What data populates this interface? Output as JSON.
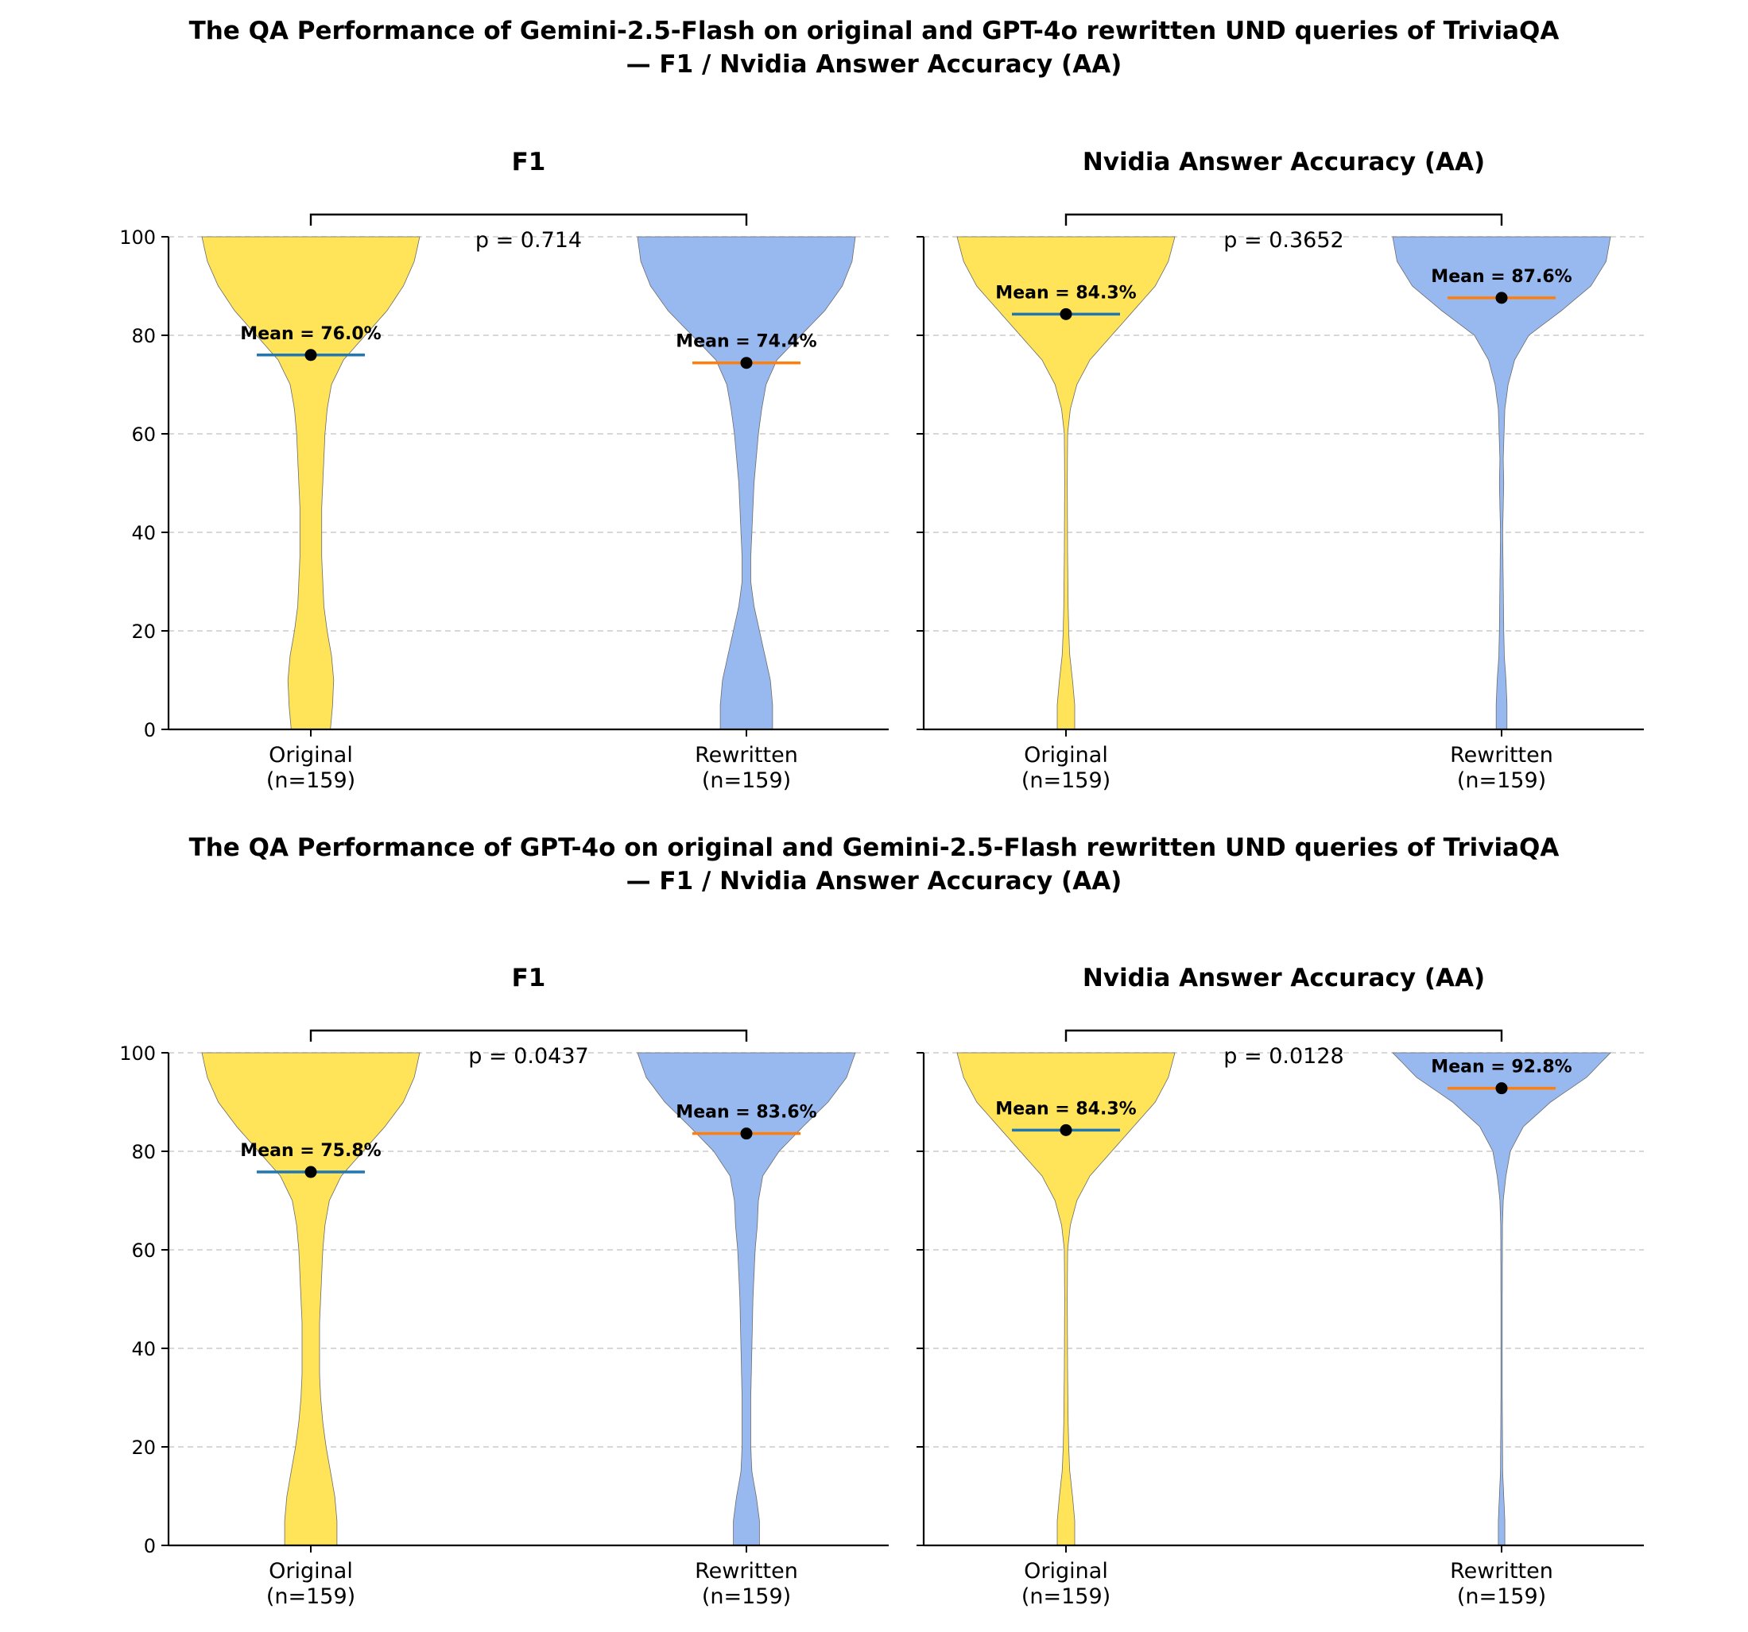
{
  "figure": {
    "sections": [
      {
        "title_line1": "The QA Performance of Gemini-2.5-Flash on original and GPT-4o rewritten UND queries of TriviaQA",
        "title_line2": "— F1 / Nvidia Answer Accuracy (AA)"
      },
      {
        "title_line1": "The QA Performance of GPT-4o on original and Gemini-2.5-Flash rewritten UND queries of TriviaQA",
        "title_line2": "— F1 / Nvidia Answer Accuracy (AA)"
      }
    ]
  },
  "colors": {
    "original_fill": "#ffe359",
    "rewritten_fill": "#98b9ef",
    "original_mean_line": "#1f77b4",
    "rewritten_mean_line": "#ff7f0e",
    "grid": "#cccccc"
  },
  "chart_data": [
    {
      "type": "violin",
      "title": "F1",
      "section": 0,
      "categories": [
        "Original\n(n=159)",
        "Rewritten\n(n=159)"
      ],
      "ylim": [
        0,
        100
      ],
      "yticks": [
        0,
        20,
        40,
        60,
        80,
        100
      ],
      "grid": true,
      "p_label": "p = 0.714",
      "series": [
        {
          "name": "Original",
          "mean": 76.0,
          "mean_label": "Mean = 76.0%",
          "density": [
            [
              0,
              0.18
            ],
            [
              5,
              0.2
            ],
            [
              10,
              0.21
            ],
            [
              15,
              0.19
            ],
            [
              20,
              0.15
            ],
            [
              25,
              0.12
            ],
            [
              30,
              0.11
            ],
            [
              35,
              0.1
            ],
            [
              40,
              0.1
            ],
            [
              45,
              0.1
            ],
            [
              50,
              0.11
            ],
            [
              55,
              0.12
            ],
            [
              60,
              0.13
            ],
            [
              65,
              0.15
            ],
            [
              70,
              0.19
            ],
            [
              75,
              0.3
            ],
            [
              80,
              0.5
            ],
            [
              85,
              0.7
            ],
            [
              90,
              0.85
            ],
            [
              95,
              0.95
            ],
            [
              100,
              1.0
            ]
          ]
        },
        {
          "name": "Rewritten",
          "mean": 74.4,
          "mean_label": "Mean = 74.4%",
          "density": [
            [
              0,
              0.24
            ],
            [
              5,
              0.24
            ],
            [
              10,
              0.22
            ],
            [
              15,
              0.17
            ],
            [
              20,
              0.12
            ],
            [
              25,
              0.07
            ],
            [
              30,
              0.04
            ],
            [
              35,
              0.04
            ],
            [
              40,
              0.05
            ],
            [
              45,
              0.06
            ],
            [
              50,
              0.07
            ],
            [
              55,
              0.09
            ],
            [
              60,
              0.11
            ],
            [
              65,
              0.14
            ],
            [
              70,
              0.18
            ],
            [
              75,
              0.28
            ],
            [
              80,
              0.5
            ],
            [
              85,
              0.72
            ],
            [
              90,
              0.88
            ],
            [
              95,
              0.97
            ],
            [
              100,
              1.0
            ]
          ]
        }
      ]
    },
    {
      "type": "violin",
      "title": "Nvidia Answer Accuracy (AA)",
      "section": 0,
      "categories": [
        "Original\n(n=159)",
        "Rewritten\n(n=159)"
      ],
      "ylim": [
        0,
        100
      ],
      "yticks": [
        0,
        20,
        40,
        60,
        80,
        100
      ],
      "grid": true,
      "p_label": "p = 0.3652",
      "series": [
        {
          "name": "Original",
          "mean": 84.3,
          "mean_label": "Mean = 84.3%",
          "density": [
            [
              0,
              0.08
            ],
            [
              5,
              0.08
            ],
            [
              10,
              0.06
            ],
            [
              15,
              0.035
            ],
            [
              20,
              0.025
            ],
            [
              25,
              0.02
            ],
            [
              35,
              0.015
            ],
            [
              50,
              0.012
            ],
            [
              60,
              0.015
            ],
            [
              65,
              0.04
            ],
            [
              70,
              0.1
            ],
            [
              75,
              0.22
            ],
            [
              80,
              0.42
            ],
            [
              85,
              0.62
            ],
            [
              90,
              0.82
            ],
            [
              95,
              0.94
            ],
            [
              100,
              1.0
            ]
          ]
        },
        {
          "name": "Rewritten",
          "mean": 87.6,
          "mean_label": "Mean = 87.6%",
          "density": [
            [
              0,
              0.05
            ],
            [
              5,
              0.05
            ],
            [
              10,
              0.04
            ],
            [
              15,
              0.025
            ],
            [
              20,
              0.02
            ],
            [
              30,
              0.015
            ],
            [
              40,
              0.01
            ],
            [
              45,
              0.015
            ],
            [
              50,
              0.02
            ],
            [
              55,
              0.015
            ],
            [
              65,
              0.03
            ],
            [
              70,
              0.06
            ],
            [
              75,
              0.12
            ],
            [
              80,
              0.25
            ],
            [
              85,
              0.55
            ],
            [
              90,
              0.82
            ],
            [
              95,
              0.96
            ],
            [
              100,
              1.0
            ]
          ]
        }
      ]
    },
    {
      "type": "violin",
      "title": "F1",
      "section": 1,
      "categories": [
        "Original\n(n=159)",
        "Rewritten\n(n=159)"
      ],
      "ylim": [
        0,
        100
      ],
      "yticks": [
        0,
        20,
        40,
        60,
        80,
        100
      ],
      "grid": true,
      "p_label": "p = 0.0437",
      "series": [
        {
          "name": "Original",
          "mean": 75.8,
          "mean_label": "Mean = 75.8%",
          "density": [
            [
              0,
              0.24
            ],
            [
              5,
              0.24
            ],
            [
              10,
              0.22
            ],
            [
              15,
              0.18
            ],
            [
              20,
              0.14
            ],
            [
              25,
              0.11
            ],
            [
              30,
              0.09
            ],
            [
              35,
              0.08
            ],
            [
              40,
              0.08
            ],
            [
              45,
              0.08
            ],
            [
              50,
              0.09
            ],
            [
              55,
              0.1
            ],
            [
              60,
              0.11
            ],
            [
              65,
              0.13
            ],
            [
              70,
              0.17
            ],
            [
              75,
              0.28
            ],
            [
              80,
              0.48
            ],
            [
              85,
              0.68
            ],
            [
              90,
              0.85
            ],
            [
              95,
              0.95
            ],
            [
              100,
              1.0
            ]
          ]
        },
        {
          "name": "Rewritten",
          "mean": 83.6,
          "mean_label": "Mean = 83.6%",
          "density": [
            [
              0,
              0.12
            ],
            [
              5,
              0.12
            ],
            [
              10,
              0.09
            ],
            [
              15,
              0.05
            ],
            [
              20,
              0.04
            ],
            [
              30,
              0.04
            ],
            [
              40,
              0.05
            ],
            [
              50,
              0.06
            ],
            [
              60,
              0.08
            ],
            [
              65,
              0.1
            ],
            [
              70,
              0.11
            ],
            [
              75,
              0.15
            ],
            [
              80,
              0.3
            ],
            [
              85,
              0.52
            ],
            [
              90,
              0.75
            ],
            [
              95,
              0.92
            ],
            [
              100,
              1.0
            ]
          ]
        }
      ]
    },
    {
      "type": "violin",
      "title": "Nvidia Answer Accuracy (AA)",
      "section": 1,
      "categories": [
        "Original\n(n=159)",
        "Rewritten\n(n=159)"
      ],
      "ylim": [
        0,
        100
      ],
      "yticks": [
        0,
        20,
        40,
        60,
        80,
        100
      ],
      "grid": true,
      "p_label": "p = 0.0128",
      "series": [
        {
          "name": "Original",
          "mean": 84.3,
          "mean_label": "Mean = 84.3%",
          "density": [
            [
              0,
              0.08
            ],
            [
              5,
              0.08
            ],
            [
              10,
              0.06
            ],
            [
              15,
              0.035
            ],
            [
              20,
              0.025
            ],
            [
              25,
              0.02
            ],
            [
              35,
              0.015
            ],
            [
              50,
              0.012
            ],
            [
              60,
              0.015
            ],
            [
              65,
              0.04
            ],
            [
              70,
              0.1
            ],
            [
              75,
              0.22
            ],
            [
              80,
              0.42
            ],
            [
              85,
              0.62
            ],
            [
              90,
              0.82
            ],
            [
              95,
              0.94
            ],
            [
              100,
              1.0
            ]
          ]
        },
        {
          "name": "Rewritten",
          "mean": 92.8,
          "mean_label": "Mean = 92.8%",
          "density": [
            [
              0,
              0.03
            ],
            [
              5,
              0.03
            ],
            [
              10,
              0.02
            ],
            [
              15,
              0.01
            ],
            [
              30,
              0.006
            ],
            [
              50,
              0.006
            ],
            [
              65,
              0.008
            ],
            [
              70,
              0.015
            ],
            [
              75,
              0.04
            ],
            [
              80,
              0.08
            ],
            [
              85,
              0.2
            ],
            [
              90,
              0.45
            ],
            [
              95,
              0.78
            ],
            [
              100,
              1.0
            ]
          ]
        }
      ]
    }
  ]
}
